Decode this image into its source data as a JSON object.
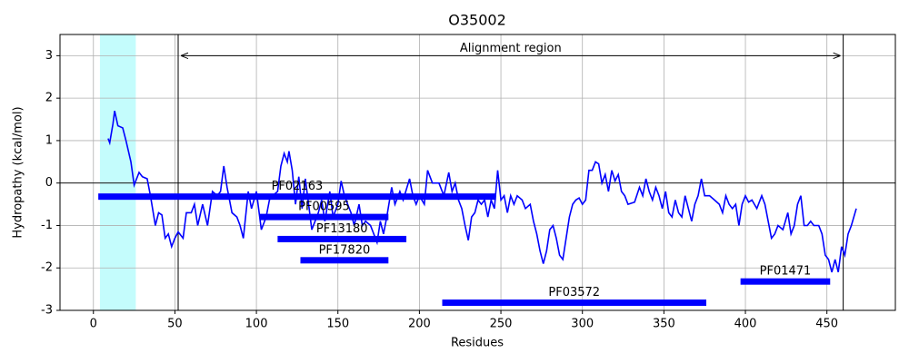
{
  "chart_data": {
    "type": "line",
    "title": "O35002",
    "x_label": "Residues",
    "y_label": "Hydropathy (kcal/mol)",
    "color": "#0000ff",
    "x": [
      9,
      10,
      12,
      13,
      15,
      18,
      20,
      23,
      25,
      28,
      30,
      33,
      35,
      38,
      40,
      42,
      44,
      46,
      48,
      50,
      52,
      55,
      57,
      60,
      62,
      64,
      67,
      70,
      73,
      76,
      78,
      80,
      82,
      85,
      88,
      90,
      92,
      95,
      97,
      100,
      103,
      106,
      108,
      110,
      113,
      115,
      117,
      119,
      120,
      122,
      124,
      126,
      128,
      130,
      132,
      134,
      136,
      138,
      140,
      142,
      145,
      147,
      150,
      152,
      154,
      156,
      158,
      160,
      163,
      165,
      167,
      170,
      172,
      174,
      176,
      178,
      180,
      183,
      185,
      188,
      190,
      194,
      196,
      198,
      200,
      203,
      205,
      208,
      212,
      215,
      218,
      220,
      222,
      224,
      226,
      228,
      230,
      232,
      234,
      236,
      238,
      240,
      242,
      244,
      246,
      248,
      250,
      252,
      254,
      256,
      258,
      260,
      263,
      265,
      268,
      270,
      272,
      274,
      276,
      278,
      280,
      282,
      284,
      286,
      288,
      290,
      292,
      294,
      296,
      298,
      300,
      302,
      304,
      306,
      308,
      310,
      312,
      314,
      316,
      318,
      320,
      322,
      324,
      326,
      328,
      332,
      335,
      337,
      339,
      341,
      343,
      345,
      347,
      349,
      351,
      353,
      355,
      357,
      359,
      361,
      363,
      365,
      367,
      369,
      371,
      373,
      375,
      378,
      381,
      384,
      386,
      388,
      390,
      392,
      394,
      396,
      398,
      400,
      402,
      404,
      407,
      410,
      412,
      414,
      416,
      418,
      420,
      423,
      426,
      428,
      430,
      432,
      434,
      436,
      438,
      440,
      442,
      445,
      447,
      449,
      451,
      453,
      455,
      457,
      459,
      461,
      463,
      465,
      468
    ],
    "values": [
      1.05,
      0.95,
      1.4,
      1.7,
      1.35,
      1.3,
      1.0,
      0.5,
      -0.05,
      0.25,
      0.15,
      0.1,
      -0.3,
      -1.0,
      -0.7,
      -0.75,
      -1.3,
      -1.2,
      -1.5,
      -1.3,
      -1.15,
      -1.3,
      -0.7,
      -0.7,
      -0.5,
      -1.0,
      -0.5,
      -1.0,
      -0.2,
      -0.3,
      -0.2,
      0.4,
      -0.1,
      -0.7,
      -0.8,
      -1.0,
      -1.3,
      -0.2,
      -0.6,
      -0.2,
      -1.1,
      -0.8,
      -0.4,
      -0.3,
      -0.2,
      0.4,
      0.7,
      0.5,
      0.75,
      0.3,
      -0.5,
      0.15,
      -0.6,
      0.1,
      -0.5,
      -1.1,
      -0.9,
      -0.7,
      -0.4,
      -0.9,
      -0.2,
      -0.8,
      -0.5,
      0.05,
      -0.3,
      -0.5,
      -0.7,
      -1.0,
      -0.5,
      -1.0,
      -0.9,
      -1.0,
      -1.2,
      -1.4,
      -0.9,
      -1.2,
      -0.8,
      -0.1,
      -0.5,
      -0.2,
      -0.4,
      0.1,
      -0.3,
      -0.5,
      -0.3,
      -0.5,
      0.3,
      0.0,
      0.0,
      -0.3,
      0.25,
      -0.2,
      0.0,
      -0.4,
      -0.6,
      -1.0,
      -1.35,
      -0.8,
      -0.7,
      -0.4,
      -0.5,
      -0.4,
      -0.8,
      -0.4,
      -0.6,
      0.3,
      -0.4,
      -0.3,
      -0.7,
      -0.3,
      -0.5,
      -0.3,
      -0.4,
      -0.6,
      -0.5,
      -0.9,
      -1.2,
      -1.6,
      -1.9,
      -1.6,
      -1.1,
      -1.0,
      -1.3,
      -1.7,
      -1.8,
      -1.3,
      -0.8,
      -0.5,
      -0.4,
      -0.35,
      -0.5,
      -0.4,
      0.3,
      0.3,
      0.5,
      0.45,
      0.0,
      0.2,
      -0.2,
      0.3,
      0.05,
      0.2,
      -0.2,
      -0.3,
      -0.5,
      -0.45,
      -0.1,
      -0.3,
      0.1,
      -0.2,
      -0.4,
      -0.1,
      -0.3,
      -0.6,
      -0.2,
      -0.7,
      -0.8,
      -0.4,
      -0.7,
      -0.8,
      -0.3,
      -0.6,
      -0.9,
      -0.5,
      -0.3,
      0.1,
      -0.3,
      -0.3,
      -0.4,
      -0.5,
      -0.7,
      -0.3,
      -0.5,
      -0.6,
      -0.5,
      -1.0,
      -0.5,
      -0.3,
      -0.45,
      -0.4,
      -0.6,
      -0.3,
      -0.5,
      -0.9,
      -1.3,
      -1.2,
      -1.0,
      -1.1,
      -0.7,
      -1.2,
      -1.0,
      -0.5,
      -0.3,
      -1.0,
      -1.0,
      -0.9,
      -1.0,
      -1.0,
      -1.2,
      -1.7,
      -1.8,
      -2.1,
      -1.8,
      -2.1,
      -1.5,
      -1.7,
      -1.2,
      -1.0,
      -0.6
    ],
    "highlight": {
      "start": 4,
      "end": 26,
      "color": "#c4fcfc"
    },
    "vlines": [
      52,
      460
    ],
    "hline": 0,
    "annotation": {
      "text": "Alignment region",
      "start": 52,
      "end": 460,
      "y": 3
    },
    "domain_color": "#0000ff",
    "domains": [
      {
        "label": "PF02163",
        "start": 3,
        "end": 247,
        "y": -0.32
      },
      {
        "label": "PF00595",
        "start": 102,
        "end": 181,
        "y": -0.8
      },
      {
        "label": "PF13180",
        "start": 113,
        "end": 192,
        "y": -1.32
      },
      {
        "label": "PF17820",
        "start": 127,
        "end": 181,
        "y": -1.82
      },
      {
        "label": "PF03572",
        "start": 214,
        "end": 376,
        "y": -2.82
      },
      {
        "label": "PF01471",
        "start": 397,
        "end": 452,
        "y": -2.32
      }
    ],
    "xlim": [
      -20.5,
      492
    ],
    "ylim": [
      -3,
      3.5
    ],
    "xticks": [
      0,
      50,
      100,
      150,
      200,
      250,
      300,
      350,
      400,
      450
    ],
    "yticks": [
      -3,
      -2,
      -1,
      0,
      1,
      2,
      3
    ],
    "grid": true
  }
}
